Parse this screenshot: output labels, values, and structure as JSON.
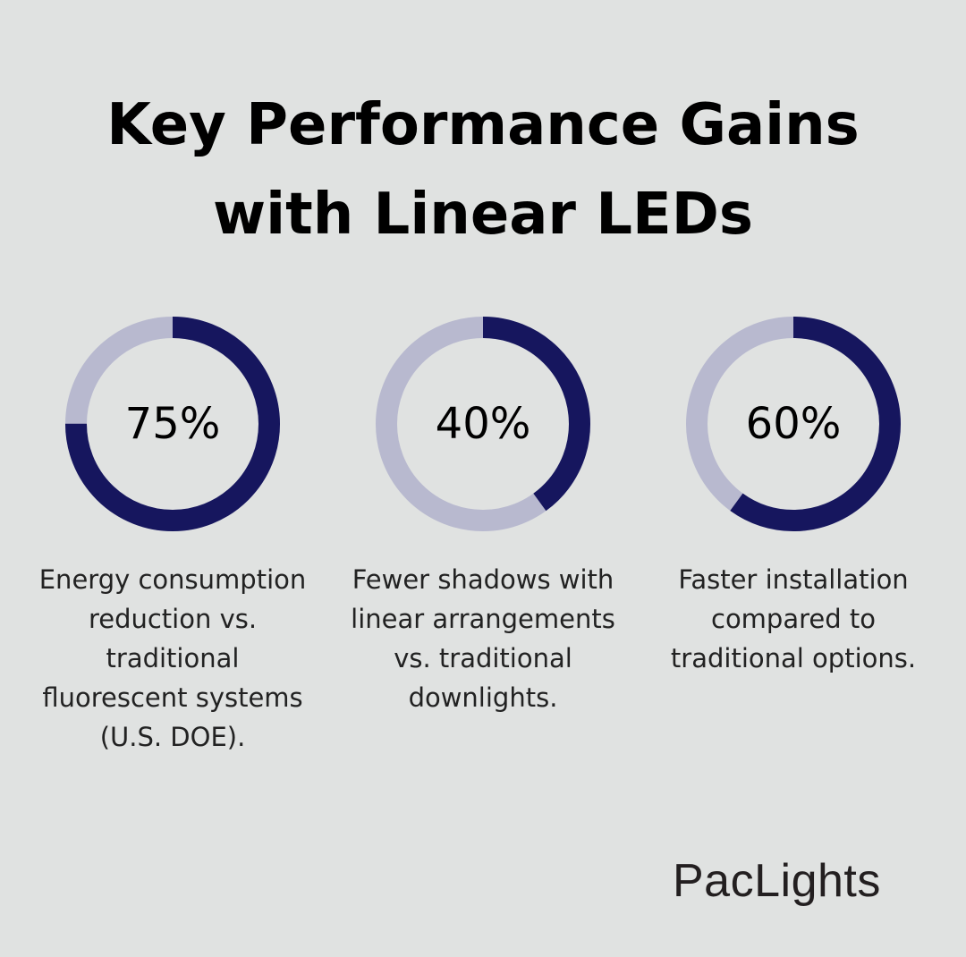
{
  "title": {
    "line1": "Key Performance Gains",
    "line2": "with Linear LEDs"
  },
  "colors": {
    "background": "#e0e2e1",
    "filled": "#16165e",
    "remaining": "#b8b9cf"
  },
  "chart_data": [
    {
      "type": "pie",
      "value": 75,
      "max": 100,
      "label": "75%",
      "description": "Energy consumption reduction vs. traditional fluorescent systems (U.S. DOE)."
    },
    {
      "type": "pie",
      "value": 40,
      "max": 100,
      "label": "40%",
      "description": "Fewer shadows with linear arrangements vs. traditional downlights."
    },
    {
      "type": "pie",
      "value": 60,
      "max": 100,
      "label": "60%",
      "description": "Faster installation compared to traditional options."
    }
  ],
  "logo": "PacLights"
}
